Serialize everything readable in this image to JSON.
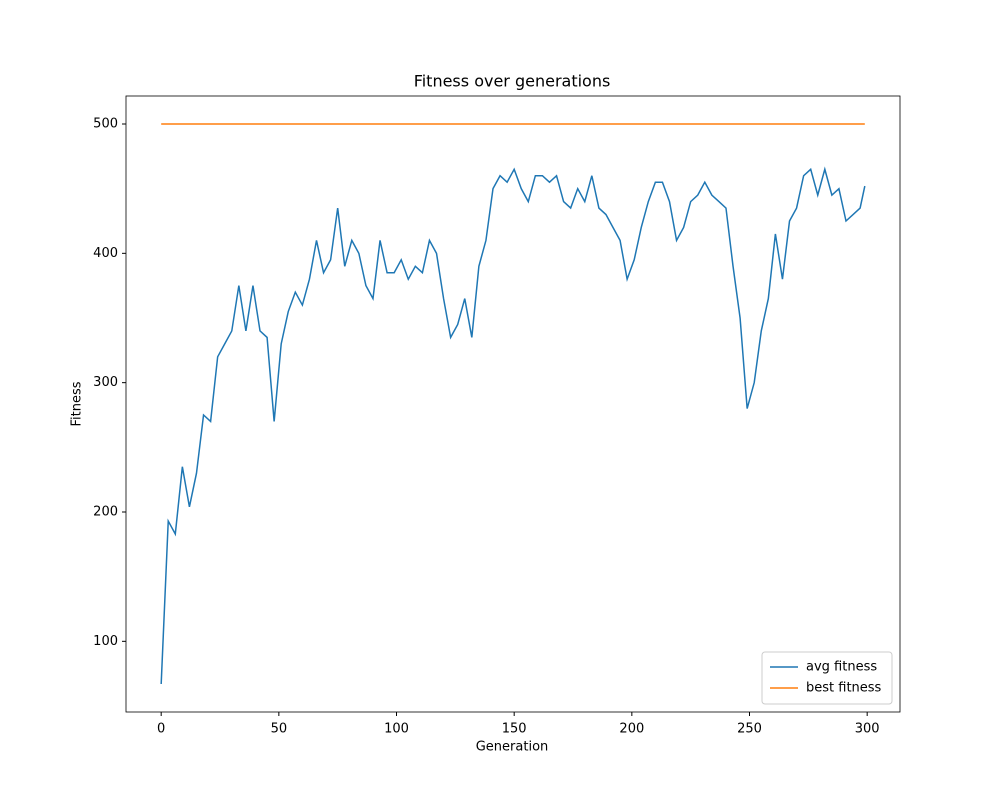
{
  "chart_data": {
    "type": "line",
    "title": "Fitness over generations",
    "x_label": "Generation",
    "y_label": "Fitness",
    "x": [
      0,
      3,
      6,
      9,
      12,
      15,
      18,
      21,
      24,
      27,
      30,
      33,
      36,
      39,
      42,
      45,
      48,
      51,
      54,
      57,
      60,
      63,
      66,
      69,
      72,
      75,
      78,
      81,
      84,
      87,
      90,
      93,
      96,
      99,
      102,
      105,
      108,
      111,
      114,
      117,
      120,
      123,
      126,
      129,
      132,
      135,
      138,
      141,
      144,
      147,
      150,
      153,
      156,
      159,
      162,
      165,
      168,
      171,
      174,
      177,
      180,
      183,
      186,
      189,
      192,
      195,
      198,
      201,
      204,
      207,
      210,
      213,
      216,
      219,
      222,
      225,
      228,
      231,
      234,
      237,
      240,
      243,
      246,
      249,
      252,
      255,
      258,
      261,
      264,
      267,
      270,
      273,
      276,
      279,
      282,
      285,
      288,
      291,
      294,
      297,
      299
    ],
    "series": [
      {
        "name": "avg fitness",
        "color": "#1f77b4",
        "values": [
          67,
          193,
          183,
          235,
          204,
          230,
          275,
          270,
          320,
          330,
          340,
          375,
          340,
          375,
          340,
          335,
          270,
          330,
          355,
          370,
          360,
          380,
          410,
          385,
          395,
          435,
          390,
          410,
          400,
          375,
          365,
          410,
          385,
          385,
          395,
          380,
          390,
          385,
          410,
          400,
          365,
          335,
          345,
          365,
          335,
          390,
          410,
          450,
          460,
          455,
          465,
          450,
          440,
          460,
          460,
          455,
          460,
          440,
          435,
          450,
          440,
          460,
          435,
          430,
          420,
          410,
          380,
          395,
          420,
          440,
          455,
          455,
          440,
          410,
          420,
          440,
          445,
          455,
          445,
          440,
          435,
          390,
          350,
          280,
          300,
          340,
          365,
          415,
          380,
          425,
          435,
          460,
          465,
          445,
          465,
          445,
          450,
          425,
          430,
          435,
          452
        ]
      },
      {
        "name": "best fitness",
        "color": "#ff7f0e",
        "values": [
          500,
          500,
          500,
          500,
          500,
          500,
          500,
          500,
          500,
          500,
          500,
          500,
          500,
          500,
          500,
          500,
          500,
          500,
          500,
          500,
          500,
          500,
          500,
          500,
          500,
          500,
          500,
          500,
          500,
          500,
          500,
          500,
          500,
          500,
          500,
          500,
          500,
          500,
          500,
          500,
          500,
          500,
          500,
          500,
          500,
          500,
          500,
          500,
          500,
          500,
          500,
          500,
          500,
          500,
          500,
          500,
          500,
          500,
          500,
          500,
          500,
          500,
          500,
          500,
          500,
          500,
          500,
          500,
          500,
          500,
          500,
          500,
          500,
          500,
          500,
          500,
          500,
          500,
          500,
          500,
          500,
          500,
          500,
          500,
          500,
          500,
          500,
          500,
          500,
          500,
          500,
          500,
          500,
          500,
          500,
          500,
          500,
          500,
          500,
          500,
          500
        ]
      }
    ],
    "xlim": [
      -14.95,
      313.95
    ],
    "ylim": [
      45.35,
      521.65
    ],
    "xticks": [
      0,
      50,
      100,
      150,
      200,
      250,
      300
    ],
    "yticks": [
      100,
      200,
      300,
      400,
      500
    ],
    "grid": false,
    "legend": "lower right"
  }
}
